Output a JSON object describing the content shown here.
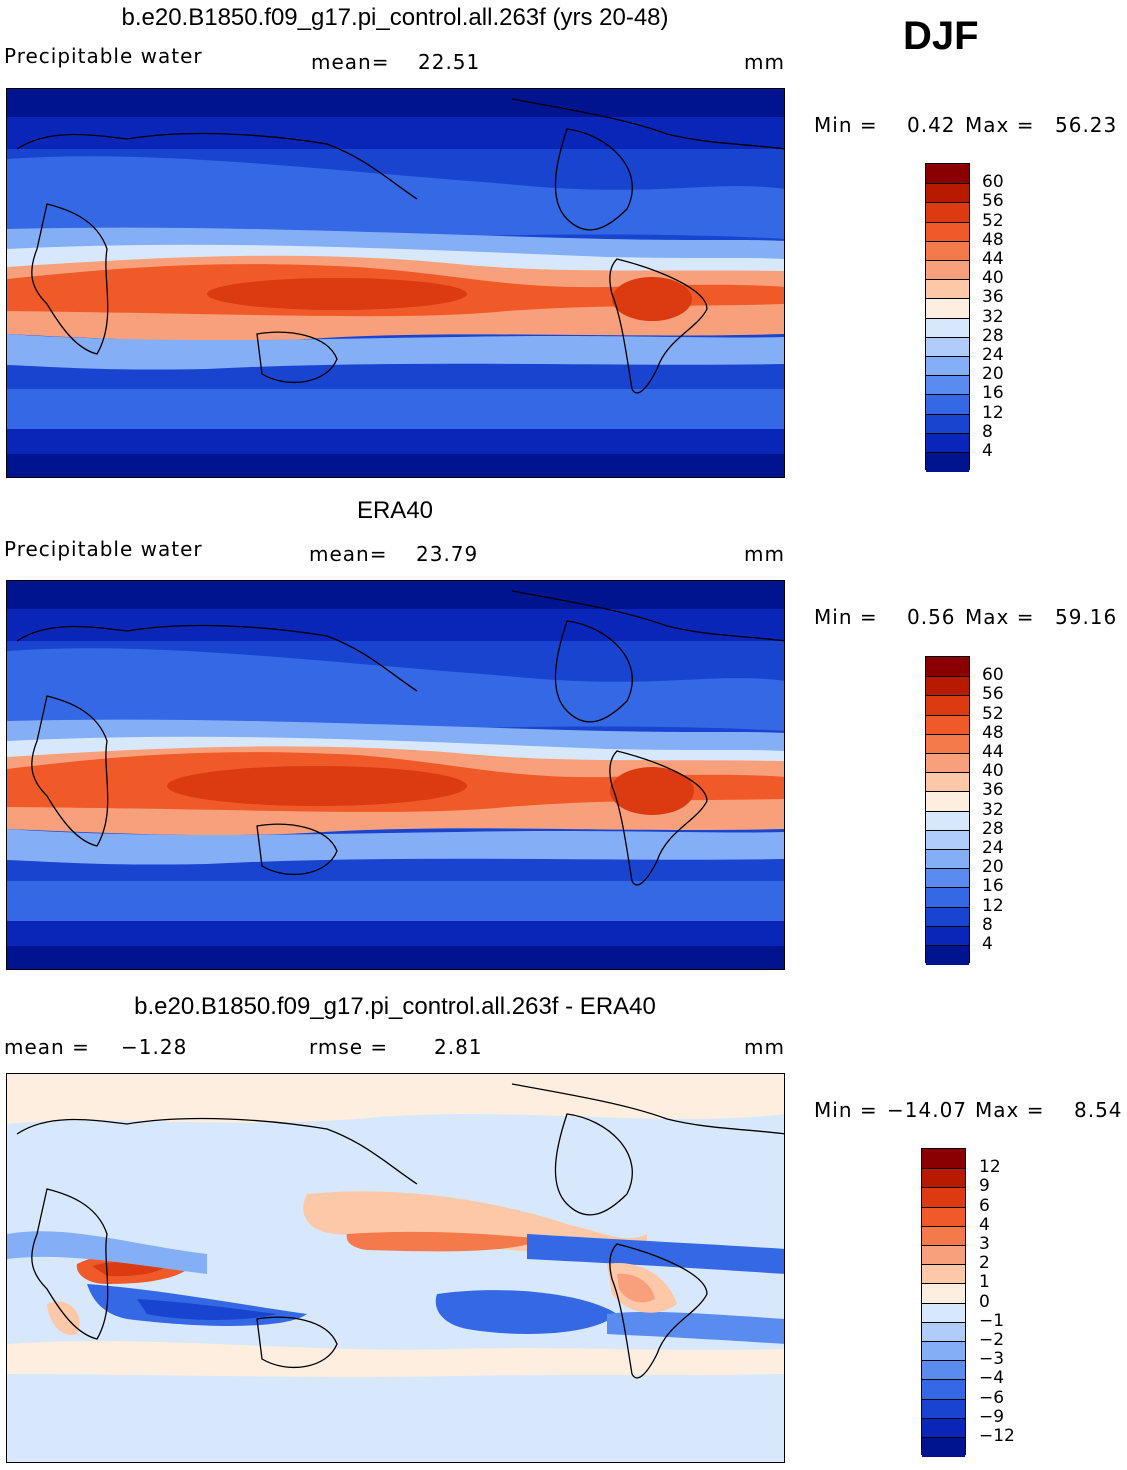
{
  "season": "DJF",
  "units": "mm",
  "panels": [
    {
      "id": "model",
      "title": "b.e20.B1850.f09_g17.pi_control.all.263f (yrs 20-48)",
      "variable": "Precipitable water",
      "stat_label": "mean=",
      "stat_value": "22.51",
      "units": "mm",
      "min_label": "Min  =",
      "min_value": "0.42",
      "max_label": "Max  =",
      "max_value": "56.23",
      "colorbar": {
        "labels": [
          "60",
          "56",
          "52",
          "48",
          "44",
          "40",
          "36",
          "32",
          "28",
          "24",
          "20",
          "16",
          "12",
          "8",
          "4"
        ],
        "colors": [
          "#8a0000",
          "#b81a00",
          "#dc3a10",
          "#f05a28",
          "#f47a4c",
          "#f8a07c",
          "#fcc8a8",
          "#fdeee0",
          "#d8e8fc",
          "#b0ccfa",
          "#84aef6",
          "#5a8cf0",
          "#3468e4",
          "#1844d0",
          "#0a26b8",
          "#001490"
        ]
      }
    },
    {
      "id": "obs",
      "title": "ERA40",
      "variable": "Precipitable water",
      "stat_label": "mean=",
      "stat_value": "23.79",
      "units": "mm",
      "min_label": "Min  =",
      "min_value": "0.56",
      "max_label": "Max  =",
      "max_value": "59.16",
      "colorbar": {
        "labels": [
          "60",
          "56",
          "52",
          "48",
          "44",
          "40",
          "36",
          "32",
          "28",
          "24",
          "20",
          "16",
          "12",
          "8",
          "4"
        ],
        "colors": [
          "#8a0000",
          "#b81a00",
          "#dc3a10",
          "#f05a28",
          "#f47a4c",
          "#f8a07c",
          "#fcc8a8",
          "#fdeee0",
          "#d8e8fc",
          "#b0ccfa",
          "#84aef6",
          "#5a8cf0",
          "#3468e4",
          "#1844d0",
          "#0a26b8",
          "#001490"
        ]
      }
    },
    {
      "id": "diff",
      "title": "b.e20.B1850.f09_g17.pi_control.all.263f - ERA40",
      "stat_label": "mean  =",
      "stat_value": "−1.28",
      "rmse_label": "rmse  =",
      "rmse_value": "2.81",
      "units": "mm",
      "min_label": "Min  =",
      "min_value": "−14.07",
      "max_label": "Max  =",
      "max_value": "8.54",
      "colorbar": {
        "labels": [
          "12",
          "9",
          "6",
          "4",
          "3",
          "2",
          "1",
          "0",
          "−1",
          "−2",
          "−3",
          "−4",
          "−6",
          "−9",
          "−12"
        ],
        "colors": [
          "#8a0000",
          "#b81a00",
          "#dc3a10",
          "#f05a28",
          "#f47a4c",
          "#f8a07c",
          "#fcc8a8",
          "#fdeee0",
          "#d8e8fc",
          "#b0ccfa",
          "#84aef6",
          "#5a8cf0",
          "#3468e4",
          "#1844d0",
          "#0a26b8",
          "#001490"
        ]
      }
    }
  ]
}
